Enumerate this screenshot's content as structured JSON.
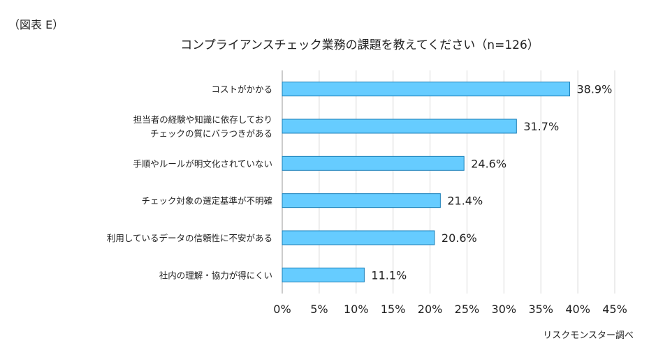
{
  "figure_label": "（図表 E）",
  "source": "リスクモンスター調べ",
  "chart_data": {
    "type": "bar",
    "orientation": "horizontal",
    "title": "コンプライアンスチェック業務の課題を教えてください（n=126）",
    "categories": [
      [
        "コストがかかる"
      ],
      [
        "担当者の経験や知識に依存しており",
        "チェックの質にバラつきがある"
      ],
      [
        "手順やルールが明文化されていない"
      ],
      [
        "チェック対象の選定基準が不明確"
      ],
      [
        "利用しているデータの信頼性に不安がある"
      ],
      [
        "社内の理解・協力が得にくい"
      ]
    ],
    "values": [
      38.9,
      31.7,
      24.6,
      21.4,
      20.6,
      11.1
    ],
    "value_labels": [
      "38.9%",
      "31.7%",
      "24.6%",
      "21.4%",
      "20.6%",
      "11.1%"
    ],
    "xlim": [
      0,
      45
    ],
    "xticks": [
      0,
      5,
      10,
      15,
      20,
      25,
      30,
      35,
      40,
      45
    ],
    "xtick_labels": [
      "0%",
      "5%",
      "10%",
      "15%",
      "20%",
      "25%",
      "30%",
      "35%",
      "40%",
      "45%"
    ],
    "grid": true,
    "colors": {
      "bar": "#66ccff",
      "bar_edge": "#1a7fb8",
      "grid": "#d9d9d9"
    }
  }
}
